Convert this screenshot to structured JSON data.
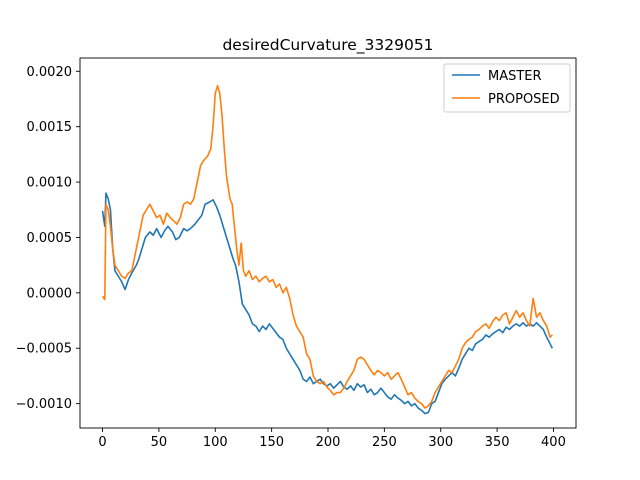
{
  "chart_data": {
    "type": "line",
    "title": "desiredCurvature_3329051",
    "xlabel": "",
    "ylabel": "",
    "xlim": [
      -20,
      420
    ],
    "ylim": [
      -0.00122,
      0.00212
    ],
    "xticks": [
      0,
      50,
      100,
      150,
      200,
      250,
      300,
      350,
      400
    ],
    "xtick_labels": [
      "0",
      "50",
      "100",
      "150",
      "200",
      "250",
      "300",
      "350",
      "400"
    ],
    "yticks": [
      0.002,
      0.0015,
      0.001,
      0.0005,
      0.0,
      -0.0005,
      -0.001
    ],
    "ytick_labels": [
      "0.0020",
      "0.0015",
      "0.0010",
      "0.0005",
      "0.0000",
      "−0.0005",
      "−0.0010"
    ],
    "grid": false,
    "legend_position": "top-right",
    "series": [
      {
        "name": "MASTER",
        "color": "#1f77b4",
        "points": [
          [
            0,
            0.00074
          ],
          [
            2,
            0.0006
          ],
          [
            3,
            0.0009
          ],
          [
            5,
            0.00085
          ],
          [
            7,
            0.00075
          ],
          [
            9,
            0.0004
          ],
          [
            11,
            0.0002
          ],
          [
            14,
            0.00015
          ],
          [
            17,
            0.0001
          ],
          [
            20,
            3e-05
          ],
          [
            23,
            0.00012
          ],
          [
            26,
            0.00018
          ],
          [
            30,
            0.00025
          ],
          [
            32,
            0.0003
          ],
          [
            35,
            0.0004
          ],
          [
            38,
            0.0005
          ],
          [
            42,
            0.00055
          ],
          [
            45,
            0.00052
          ],
          [
            48,
            0.00058
          ],
          [
            52,
            0.0005
          ],
          [
            55,
            0.00056
          ],
          [
            58,
            0.0006
          ],
          [
            62,
            0.00055
          ],
          [
            65,
            0.00048
          ],
          [
            68,
            0.0005
          ],
          [
            72,
            0.00058
          ],
          [
            75,
            0.00056
          ],
          [
            78,
            0.00058
          ],
          [
            82,
            0.00062
          ],
          [
            85,
            0.00066
          ],
          [
            88,
            0.0007
          ],
          [
            91,
            0.0008
          ],
          [
            95,
            0.00082
          ],
          [
            98,
            0.00084
          ],
          [
            101,
            0.00078
          ],
          [
            104,
            0.0007
          ],
          [
            107,
            0.0006
          ],
          [
            110,
            0.0005
          ],
          [
            113,
            0.0004
          ],
          [
            116,
            0.0003
          ],
          [
            118,
            0.00025
          ],
          [
            121,
            0.0001
          ],
          [
            124,
            -0.0001
          ],
          [
            127,
            -0.00015
          ],
          [
            130,
            -0.0002
          ],
          [
            133,
            -0.00028
          ],
          [
            136,
            -0.0003
          ],
          [
            139,
            -0.00035
          ],
          [
            142,
            -0.0003
          ],
          [
            145,
            -0.00033
          ],
          [
            148,
            -0.00028
          ],
          [
            151,
            -0.00032
          ],
          [
            154,
            -0.00036
          ],
          [
            157,
            -0.0004
          ],
          [
            160,
            -0.00042
          ],
          [
            163,
            -0.0005
          ],
          [
            166,
            -0.00055
          ],
          [
            169,
            -0.0006
          ],
          [
            172,
            -0.00065
          ],
          [
            175,
            -0.0007
          ],
          [
            178,
            -0.00078
          ],
          [
            181,
            -0.0008
          ],
          [
            184,
            -0.00076
          ],
          [
            187,
            -0.00082
          ],
          [
            190,
            -0.0008
          ],
          [
            193,
            -0.00078
          ],
          [
            196,
            -0.00082
          ],
          [
            199,
            -0.00084
          ],
          [
            202,
            -0.00082
          ],
          [
            205,
            -0.00086
          ],
          [
            208,
            -0.00083
          ],
          [
            211,
            -0.0008
          ],
          [
            214,
            -0.00085
          ],
          [
            217,
            -0.00087
          ],
          [
            220,
            -0.00084
          ],
          [
            223,
            -0.00088
          ],
          [
            226,
            -0.00082
          ],
          [
            229,
            -0.00085
          ],
          [
            232,
            -0.00083
          ],
          [
            235,
            -0.0009
          ],
          [
            238,
            -0.00087
          ],
          [
            241,
            -0.00092
          ],
          [
            244,
            -0.0009
          ],
          [
            247,
            -0.00086
          ],
          [
            250,
            -0.0009
          ],
          [
            253,
            -0.00094
          ],
          [
            256,
            -0.00096
          ],
          [
            259,
            -0.00092
          ],
          [
            262,
            -0.00095
          ],
          [
            265,
            -0.00097
          ],
          [
            268,
            -0.001
          ],
          [
            271,
            -0.00098
          ],
          [
            274,
            -0.00102
          ],
          [
            277,
            -0.001
          ],
          [
            280,
            -0.00104
          ],
          [
            283,
            -0.00106
          ],
          [
            286,
            -0.00109
          ],
          [
            289,
            -0.00108
          ],
          [
            292,
            -0.001
          ],
          [
            295,
            -0.00098
          ],
          [
            298,
            -0.0009
          ],
          [
            301,
            -0.00082
          ],
          [
            304,
            -0.00078
          ],
          [
            307,
            -0.00075
          ],
          [
            310,
            -0.00072
          ],
          [
            313,
            -0.00075
          ],
          [
            316,
            -0.00068
          ],
          [
            319,
            -0.0006
          ],
          [
            322,
            -0.00055
          ],
          [
            325,
            -0.0005
          ],
          [
            328,
            -0.00052
          ],
          [
            331,
            -0.00046
          ],
          [
            334,
            -0.00044
          ],
          [
            337,
            -0.00042
          ],
          [
            340,
            -0.00038
          ],
          [
            343,
            -0.0004
          ],
          [
            346,
            -0.00037
          ],
          [
            349,
            -0.00035
          ],
          [
            352,
            -0.00033
          ],
          [
            355,
            -0.00036
          ],
          [
            358,
            -0.00031
          ],
          [
            361,
            -0.00033
          ],
          [
            364,
            -0.0003
          ],
          [
            367,
            -0.00028
          ],
          [
            370,
            -0.0003
          ],
          [
            373,
            -0.00027
          ],
          [
            376,
            -0.0003
          ],
          [
            379,
            -0.00028
          ],
          [
            382,
            -0.0003
          ],
          [
            385,
            -0.00027
          ],
          [
            388,
            -0.0003
          ],
          [
            391,
            -0.00033
          ],
          [
            394,
            -0.0004
          ],
          [
            397,
            -0.00046
          ],
          [
            399,
            -0.0005
          ]
        ]
      },
      {
        "name": "PROPOSED",
        "color": "#ff7f0e",
        "points": [
          [
            0,
            -3e-05
          ],
          [
            2,
            -6e-05
          ],
          [
            3,
            0.0008
          ],
          [
            5,
            0.00075
          ],
          [
            7,
            0.0006
          ],
          [
            9,
            0.0004
          ],
          [
            11,
            0.00025
          ],
          [
            14,
            0.0002
          ],
          [
            17,
            0.00015
          ],
          [
            20,
            0.00013
          ],
          [
            23,
            0.00018
          ],
          [
            26,
            0.0002
          ],
          [
            30,
            0.0004
          ],
          [
            33,
            0.00055
          ],
          [
            36,
            0.0007
          ],
          [
            39,
            0.00075
          ],
          [
            42,
            0.0008
          ],
          [
            45,
            0.00074
          ],
          [
            48,
            0.00068
          ],
          [
            51,
            0.0007
          ],
          [
            54,
            0.00062
          ],
          [
            57,
            0.00072
          ],
          [
            60,
            0.00068
          ],
          [
            63,
            0.00065
          ],
          [
            66,
            0.00062
          ],
          [
            69,
            0.00068
          ],
          [
            72,
            0.0008
          ],
          [
            75,
            0.00082
          ],
          [
            78,
            0.0008
          ],
          [
            81,
            0.00085
          ],
          [
            84,
            0.001
          ],
          [
            87,
            0.00115
          ],
          [
            90,
            0.0012
          ],
          [
            93,
            0.00123
          ],
          [
            96,
            0.0013
          ],
          [
            98,
            0.0015
          ],
          [
            100,
            0.0018
          ],
          [
            102,
            0.00187
          ],
          [
            104,
            0.0018
          ],
          [
            106,
            0.0016
          ],
          [
            108,
            0.0013
          ],
          [
            110,
            0.00105
          ],
          [
            113,
            0.00085
          ],
          [
            115,
            0.0008
          ],
          [
            117,
            0.0006
          ],
          [
            119,
            0.0004
          ],
          [
            121,
            0.00025
          ],
          [
            123,
            0.00045
          ],
          [
            125,
            0.0002
          ],
          [
            127,
            0.00015
          ],
          [
            130,
            0.0002
          ],
          [
            133,
            0.00012
          ],
          [
            136,
            0.00015
          ],
          [
            139,
            0.0001
          ],
          [
            142,
            0.00013
          ],
          [
            145,
            0.00015
          ],
          [
            148,
            0.0001
          ],
          [
            151,
            0.00012
          ],
          [
            154,
            5e-05
          ],
          [
            157,
            8e-05
          ],
          [
            160,
            0.0
          ],
          [
            163,
            5e-05
          ],
          [
            166,
            -5e-05
          ],
          [
            169,
            -0.0002
          ],
          [
            172,
            -0.0003
          ],
          [
            175,
            -0.00035
          ],
          [
            178,
            -0.0004
          ],
          [
            181,
            -0.00055
          ],
          [
            184,
            -0.0006
          ],
          [
            187,
            -0.00075
          ],
          [
            190,
            -0.0008
          ],
          [
            193,
            -0.00082
          ],
          [
            196,
            -0.0008
          ],
          [
            199,
            -0.00085
          ],
          [
            202,
            -0.00088
          ],
          [
            205,
            -0.00092
          ],
          [
            208,
            -0.0009
          ],
          [
            211,
            -0.0009
          ],
          [
            214,
            -0.00086
          ],
          [
            217,
            -0.0008
          ],
          [
            220,
            -0.00075
          ],
          [
            223,
            -0.0007
          ],
          [
            226,
            -0.0006
          ],
          [
            229,
            -0.00058
          ],
          [
            232,
            -0.0006
          ],
          [
            235,
            -0.00065
          ],
          [
            238,
            -0.0007
          ],
          [
            241,
            -0.00074
          ],
          [
            244,
            -0.0007
          ],
          [
            247,
            -0.00072
          ],
          [
            250,
            -0.00075
          ],
          [
            253,
            -0.00072
          ],
          [
            256,
            -0.00078
          ],
          [
            259,
            -0.00075
          ],
          [
            262,
            -0.00072
          ],
          [
            265,
            -0.00078
          ],
          [
            268,
            -0.00085
          ],
          [
            271,
            -0.00092
          ],
          [
            274,
            -0.0009
          ],
          [
            277,
            -0.00095
          ],
          [
            280,
            -0.00098
          ],
          [
            283,
            -0.001
          ],
          [
            286,
            -0.00104
          ],
          [
            289,
            -0.00102
          ],
          [
            292,
            -0.00098
          ],
          [
            295,
            -0.0009
          ],
          [
            298,
            -0.00085
          ],
          [
            301,
            -0.0008
          ],
          [
            304,
            -0.00075
          ],
          [
            307,
            -0.0007
          ],
          [
            310,
            -0.00072
          ],
          [
            313,
            -0.00066
          ],
          [
            316,
            -0.0006
          ],
          [
            319,
            -0.0005
          ],
          [
            322,
            -0.00045
          ],
          [
            325,
            -0.00042
          ],
          [
            328,
            -0.0004
          ],
          [
            331,
            -0.00035
          ],
          [
            334,
            -0.00033
          ],
          [
            337,
            -0.0003
          ],
          [
            340,
            -0.00028
          ],
          [
            343,
            -0.00032
          ],
          [
            346,
            -0.00026
          ],
          [
            349,
            -0.00022
          ],
          [
            352,
            -0.00025
          ],
          [
            355,
            -0.0002
          ],
          [
            358,
            -0.00018
          ],
          [
            361,
            -0.00028
          ],
          [
            364,
            -0.00022
          ],
          [
            367,
            -0.00016
          ],
          [
            370,
            -0.00022
          ],
          [
            373,
            -0.00018
          ],
          [
            376,
            -0.00025
          ],
          [
            379,
            -0.0003
          ],
          [
            382,
            -5e-05
          ],
          [
            385,
            -0.00022
          ],
          [
            388,
            -0.00018
          ],
          [
            391,
            -0.00025
          ],
          [
            394,
            -0.0003
          ],
          [
            397,
            -0.0004
          ],
          [
            399,
            -0.00038
          ]
        ]
      }
    ]
  }
}
